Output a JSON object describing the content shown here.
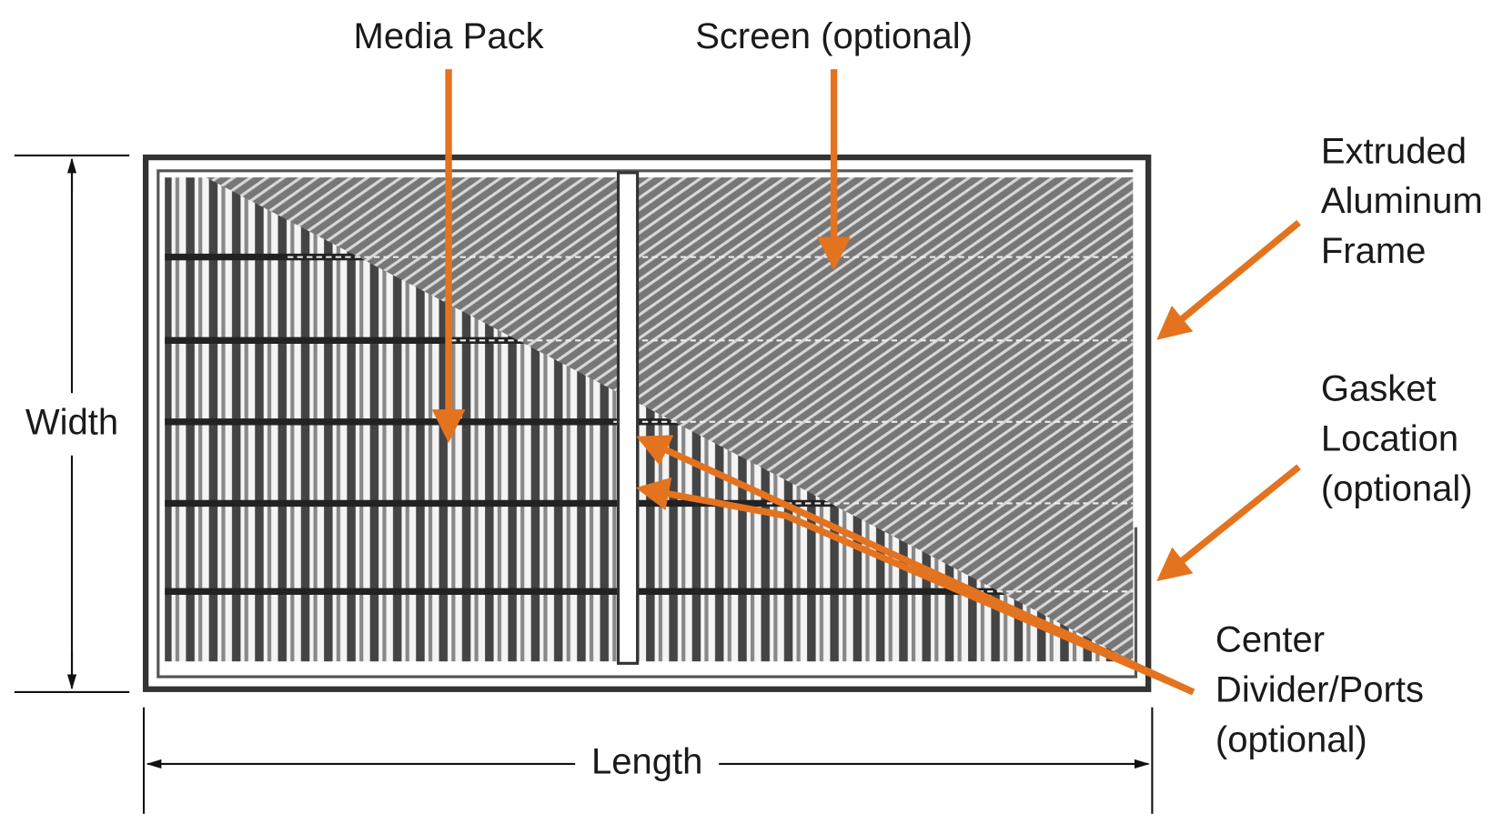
{
  "labels": {
    "media_pack": "Media Pack",
    "screen": "Screen (optional)",
    "frame": [
      "Extruded",
      "Aluminum",
      "Frame"
    ],
    "gasket": [
      "Gasket",
      "Location",
      "(optional)"
    ],
    "divider": [
      "Center",
      "Divider/Ports",
      "(optional)"
    ]
  },
  "dimensions": {
    "width": "Width",
    "length": "Length"
  }
}
